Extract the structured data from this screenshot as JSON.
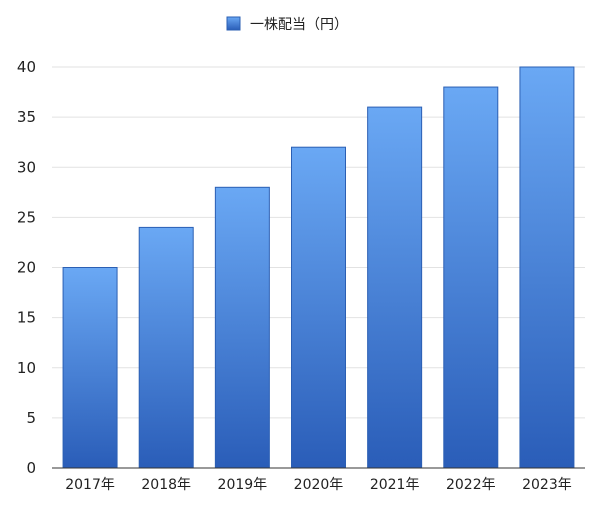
{
  "chart_data": {
    "type": "bar",
    "categories": [
      "2017年",
      "2018年",
      "2019年",
      "2020年",
      "2021年",
      "2022年",
      "2023年"
    ],
    "series": [
      {
        "name": "一株配当（円）",
        "values": [
          20,
          24,
          28,
          32,
          36,
          38,
          40
        ]
      }
    ],
    "ylim": [
      0,
      40
    ],
    "yticks": [
      0,
      5,
      10,
      15,
      20,
      25,
      30,
      35,
      40
    ],
    "grid": true,
    "legend_position": "top-center",
    "colors": {
      "bar_top": "#6aa8f4",
      "bar_bottom": "#2a5db8",
      "bar_edge": "#2b5fb3",
      "grid": "#e2e2e2",
      "axis": "#333333"
    }
  }
}
